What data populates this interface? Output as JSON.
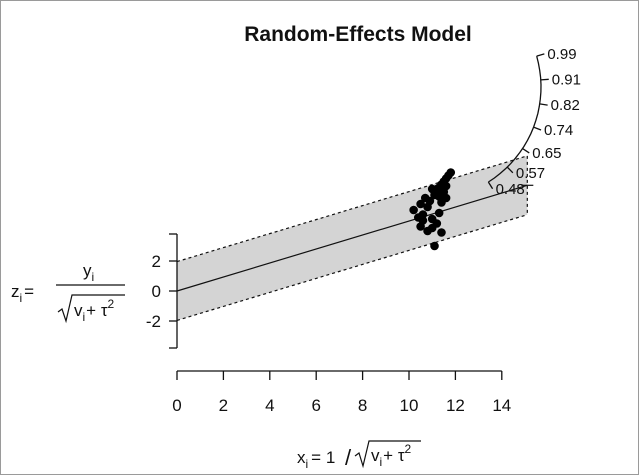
{
  "chart_data": {
    "type": "scatter",
    "title": "Random-Effects Model",
    "x_axis": {
      "ticks": [
        0,
        2,
        4,
        6,
        8,
        10,
        12,
        14
      ],
      "range": [
        0,
        14
      ],
      "label": {
        "lhs": "x",
        "lhs_sub": "i",
        "eq": "= 1",
        "slash": "/",
        "rad_v": "v",
        "rad_sub": "i",
        "rad_rest": "+ τ",
        "sup": "2"
      }
    },
    "y_axis": {
      "ticks": [
        2,
        0,
        -2
      ],
      "tick_labels": [
        "2",
        "0",
        "-2"
      ],
      "range": [
        -3.8,
        3.8
      ],
      "label": {
        "lhs": "z",
        "lhs_sub": "i",
        "eq": "=",
        "num": "y",
        "num_sub": "i",
        "rad_v": "v",
        "rad_sub": "i",
        "rad_rest": "+ τ",
        "sup": "2"
      }
    },
    "regression_line": {
      "slope": 0.4667,
      "intercept": 0
    },
    "band_halfwidth": 1.96,
    "right_scale": {
      "labels": [
        "0.99",
        "0.91",
        "0.82",
        "0.74",
        "0.65",
        "0.57",
        "0.48"
      ]
    },
    "points": [
      [
        11.8,
        7.9
      ],
      [
        11.7,
        7.7
      ],
      [
        11.6,
        7.5
      ],
      [
        11.5,
        7.3
      ],
      [
        11.4,
        7.1
      ],
      [
        11.3,
        6.9
      ],
      [
        11.2,
        6.8
      ],
      [
        11.6,
        7.0
      ],
      [
        11.4,
        6.7
      ],
      [
        11.2,
        6.5
      ],
      [
        11.0,
        6.8
      ],
      [
        11.1,
        6.4
      ],
      [
        11.3,
        6.3
      ],
      [
        11.5,
        6.6
      ],
      [
        10.7,
        6.2
      ],
      [
        10.9,
        6.0
      ],
      [
        11.4,
        5.9
      ],
      [
        11.6,
        6.2
      ],
      [
        10.5,
        5.8
      ],
      [
        10.2,
        5.4
      ],
      [
        10.6,
        5.1
      ],
      [
        10.8,
        5.6
      ],
      [
        11.3,
        5.2
      ],
      [
        10.4,
        4.9
      ],
      [
        10.6,
        4.7
      ],
      [
        11.0,
        4.8
      ],
      [
        11.2,
        4.5
      ],
      [
        10.5,
        4.3
      ],
      [
        11.0,
        4.2
      ],
      [
        11.4,
        3.9
      ],
      [
        10.8,
        4.0
      ],
      [
        11.1,
        3.0
      ]
    ]
  }
}
